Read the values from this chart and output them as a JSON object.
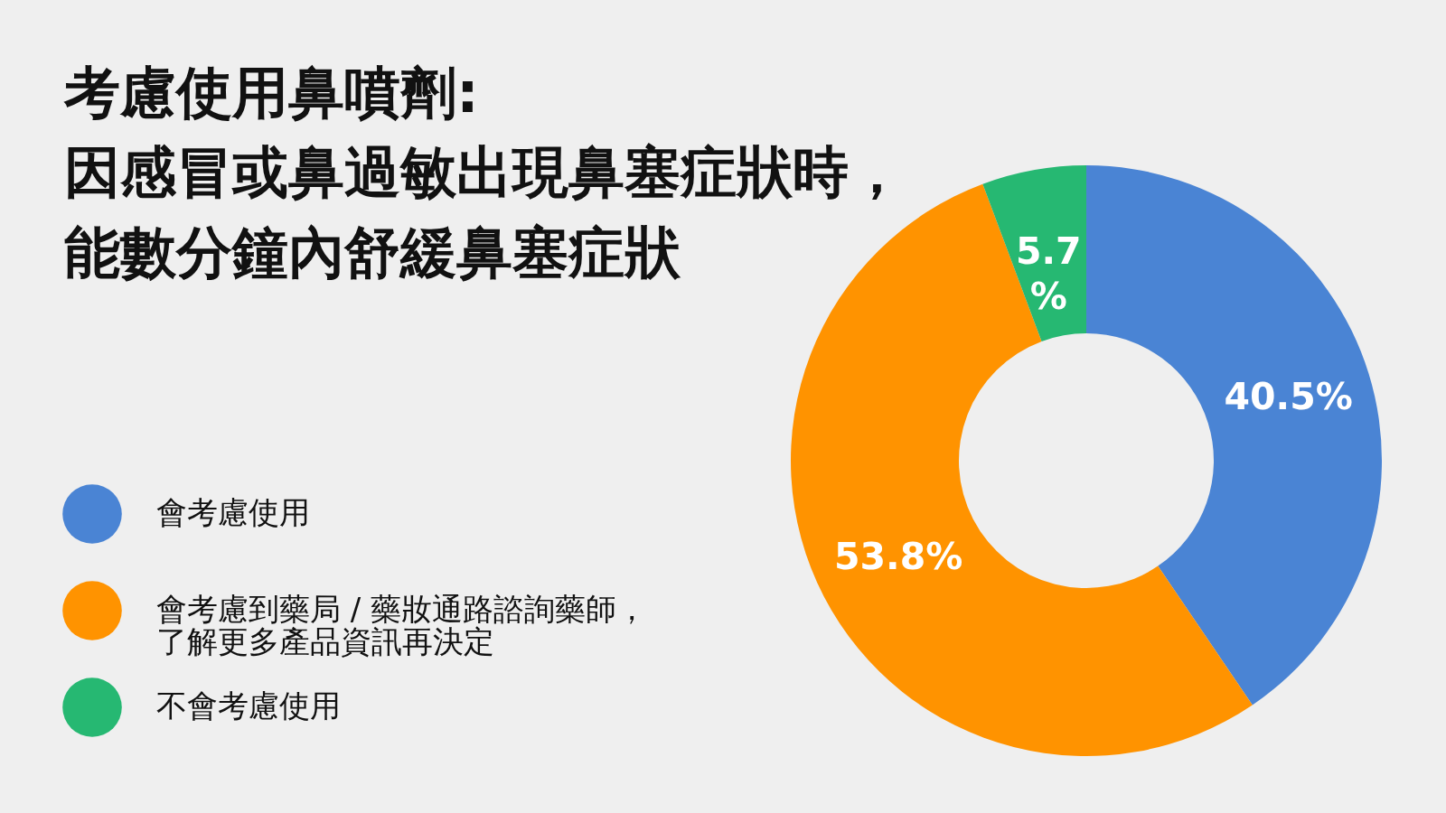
{
  "chart_data": {
    "type": "donut",
    "title": "考慮使用鼻噴劑:",
    "subtitle": "因感冒或鼻過敏出現鼻塞症狀時，能數分鐘內舒緩鼻塞症狀",
    "categories": [
      "會考慮使用",
      "會考慮到藥局 / 藥妝通路諮詢藥師，了解更多產品資訊再決定",
      "不會考慮使用"
    ],
    "values": [
      40.5,
      53.8,
      5.7
    ],
    "colors": [
      "#4a84d4",
      "#ff9300",
      "#26b872"
    ],
    "value_labels": [
      "40.5%",
      "53.8%",
      "5.7\n%"
    ],
    "legend": "left"
  }
}
